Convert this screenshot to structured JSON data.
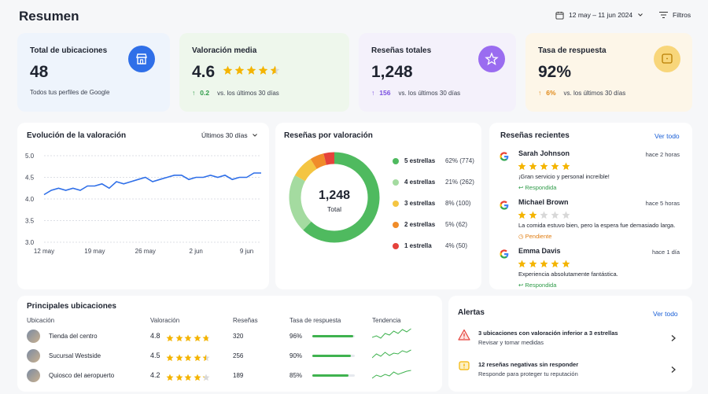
{
  "header": {
    "title": "Resumen",
    "date_range": "12 may – 11 jun 2024",
    "filters_label": "Filtros"
  },
  "kpis": [
    {
      "title": "Total de ubicaciones",
      "value": "48",
      "sub": "Todos tus perfiles de Google",
      "icon": "store-icon",
      "color": "#2f6fe8"
    },
    {
      "title": "Valoración media",
      "value": "4.6",
      "delta": "0.2",
      "delta_dir": "up",
      "sub": "vs. los últimos 30 días",
      "rating": 4.6,
      "icon": "arrow-up-icon"
    },
    {
      "title": "Reseñas totales",
      "value": "1,248",
      "delta": "156",
      "delta_dir": "up",
      "sub": "vs. los últimos 30 días",
      "icon": "star-icon",
      "color": "#9a6cf0"
    },
    {
      "title": "Tasa de respuesta",
      "value": "92%",
      "delta": "6%",
      "delta_dir": "up",
      "sub": "vs. los últimos 30 días",
      "icon": "chat-icon",
      "color": "#f5c14a"
    }
  ],
  "rating_chart": {
    "title": "Evolución de la valoración",
    "period_label": "Últimos 30 días"
  },
  "chart_data": [
    {
      "type": "line",
      "x": [
        "12 may",
        "13 may",
        "14 may",
        "15 may",
        "16 may",
        "17 may",
        "18 may",
        "19 may",
        "20 may",
        "21 may",
        "22 may",
        "23 may",
        "24 may",
        "25 may",
        "26 may",
        "27 may",
        "28 may",
        "29 may",
        "30 may",
        "31 may",
        "1 jun",
        "2 jun",
        "3 jun",
        "4 jun",
        "5 jun",
        "6 jun",
        "7 jun",
        "8 jun",
        "9 jun",
        "10 jun",
        "11 jun"
      ],
      "tick_labels": [
        "12 may",
        "19 may",
        "26 may",
        "2 jun",
        "9 jun"
      ],
      "series": [
        {
          "values": [
            4.1,
            4.2,
            4.25,
            4.2,
            4.25,
            4.2,
            4.3,
            4.3,
            4.35,
            4.25,
            4.4,
            4.35,
            4.4,
            4.45,
            4.5,
            4.4,
            4.45,
            4.5,
            4.55,
            4.55,
            4.45,
            4.5,
            4.5,
            4.55,
            4.5,
            4.55,
            4.45,
            4.5,
            4.5,
            4.6,
            4.6
          ]
        }
      ],
      "yticks": [
        "5.0",
        "4.5",
        "4.0",
        "3.5",
        "3.0"
      ],
      "ylim": [
        3.0,
        5.0
      ],
      "color": "#2f6fe8"
    },
    {
      "type": "pie",
      "title": "Reseñas por valoración",
      "center_value": "1,248",
      "center_label": "Total",
      "slices": [
        {
          "label": "5 estrellas",
          "value": 774,
          "percent_text": "62% (774)",
          "color": "#4fba5f"
        },
        {
          "label": "4 estrellas",
          "value": 262,
          "percent_text": "21% (262)",
          "color": "#a4dba0"
        },
        {
          "label": "3 estrellas",
          "value": 100,
          "percent_text": "8% (100)",
          "color": "#f4c542"
        },
        {
          "label": "2 estrellas",
          "value": 62,
          "percent_text": "5% (62)",
          "color": "#f08c2a"
        },
        {
          "label": "1 estrella",
          "value": 50,
          "percent_text": "4% (50)",
          "color": "#e5423b"
        }
      ]
    }
  ],
  "recent_reviews": {
    "title": "Reseñas recientes",
    "view_all": "Ver todo",
    "items": [
      {
        "name": "Sarah Johnson",
        "time": "hace 2 horas",
        "rating": 5,
        "text": "¡Gran servicio y personal increíble!",
        "status": "Respondida",
        "status_color": "#2e9b48"
      },
      {
        "name": "Michael Brown",
        "time": "hace 5 horas",
        "rating": 2,
        "text": "La comida estuvo bien, pero la espera fue demasiado larga.",
        "status": "Pendiente",
        "status_color": "#e07d12"
      },
      {
        "name": "Emma Davis",
        "time": "hace 1 día",
        "rating": 5,
        "text": "Experiencia absolutamente fantástica.",
        "status": "Respondida",
        "status_color": "#2e9b48"
      }
    ]
  },
  "top_locations": {
    "title": "Principales ubicaciones",
    "columns": [
      "Ubicación",
      "Valoración",
      "Reseñas",
      "Tasa de respuesta",
      "Tendencia"
    ],
    "rows": [
      {
        "name": "Tienda del centro",
        "rating": "4.8",
        "rating_value": 4.8,
        "reviews": "320",
        "response": "96%",
        "response_value": 96
      },
      {
        "name": "Sucursal Westside",
        "rating": "4.5",
        "rating_value": 4.5,
        "reviews": "256",
        "response": "90%",
        "response_value": 90
      },
      {
        "name": "Quiosco del aeropuerto",
        "rating": "4.2",
        "rating_value": 4.2,
        "reviews": "189",
        "response": "85%",
        "response_value": 85
      }
    ]
  },
  "alerts": {
    "title": "Alertas",
    "view_all": "Ver todo",
    "items": [
      {
        "title": "3 ubicaciones con valoración inferior a 3 estrellas",
        "sub": "Revisar y tomar medidas",
        "icon": "warning-icon",
        "color": "#e5423b"
      },
      {
        "title": "12 reseñas negativas sin responder",
        "sub": "Responde para proteger tu reputación",
        "icon": "message-alert-icon",
        "color": "#f4b400"
      }
    ]
  }
}
